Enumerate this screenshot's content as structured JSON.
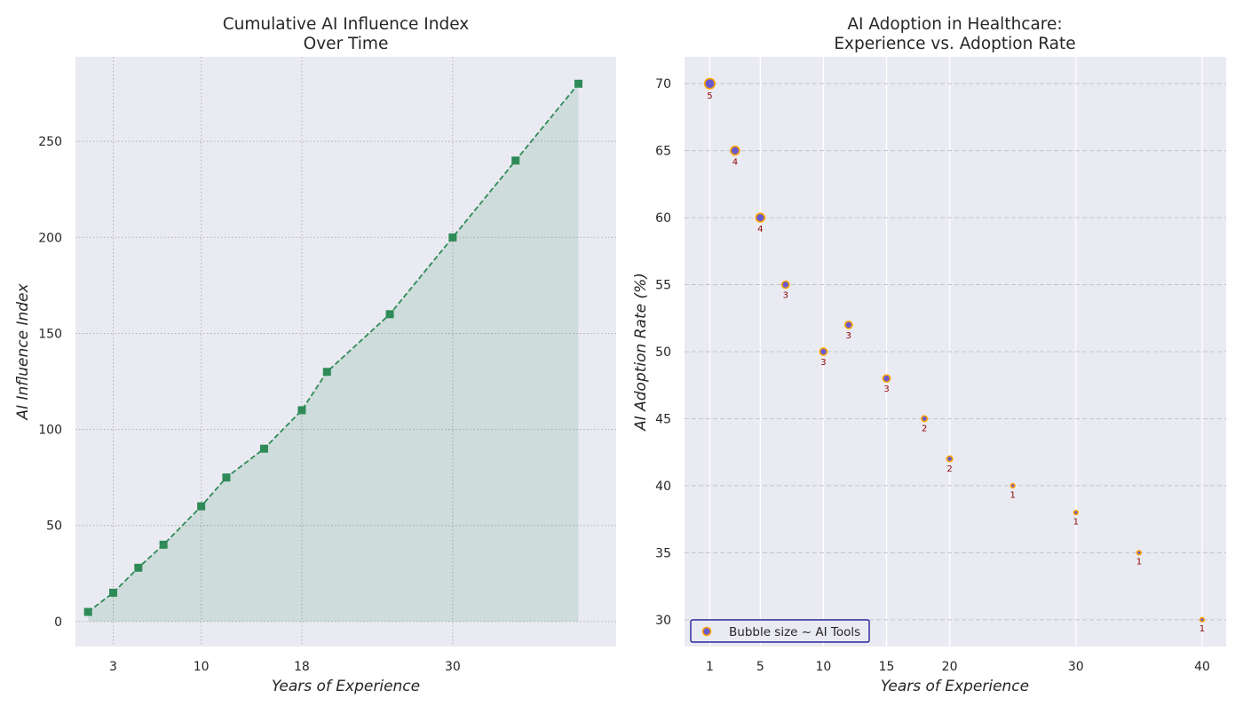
{
  "chart_data": [
    {
      "type": "area",
      "title_line1": "Cumulative AI Influence Index",
      "title_line2": "Over Time",
      "xlabel": "Years of Experience",
      "ylabel": "AI Influence Index",
      "xlim": [
        0,
        43
      ],
      "ylim": [
        -13,
        294
      ],
      "xticks": [
        3,
        10,
        18,
        30
      ],
      "yticks": [
        0,
        50,
        100,
        150,
        200,
        250
      ],
      "grid": "dotted",
      "x": [
        1,
        3,
        5,
        7,
        10,
        12,
        15,
        18,
        20,
        25,
        30,
        35,
        40
      ],
      "y": [
        5,
        15,
        28,
        40,
        60,
        75,
        90,
        110,
        130,
        160,
        200,
        240,
        280
      ],
      "colors": {
        "line": "#2e8b57",
        "fill": "#2e8b57",
        "plot_bg": "#eaeaf2"
      }
    },
    {
      "type": "scatter",
      "title_line1": "AI Adoption in Healthcare:",
      "title_line2": "Experience vs. Adoption Rate",
      "xlabel": "Years of Experience",
      "ylabel": "AI Adoption Rate (%)",
      "xlim": [
        -1,
        41.9
      ],
      "ylim": [
        28,
        72
      ],
      "xticks": [
        1,
        5,
        10,
        15,
        20,
        30,
        40
      ],
      "yticks": [
        30,
        35,
        40,
        45,
        50,
        55,
        60,
        65,
        70
      ],
      "legend": {
        "label": "Bubble size ~ AI Tools",
        "position": "lower-left"
      },
      "x": [
        1,
        3,
        5,
        7,
        10,
        12,
        15,
        18,
        20,
        25,
        30,
        35,
        40
      ],
      "y": [
        70,
        65,
        60,
        55,
        50,
        52,
        48,
        45,
        42,
        40,
        38,
        35,
        30
      ],
      "ai_tools": [
        5,
        4,
        4,
        3,
        3,
        3,
        3,
        2,
        2,
        1,
        1,
        1,
        1
      ],
      "colors": {
        "marker_fill": "#6a5acd",
        "marker_edge": "#ffa500",
        "label": "#8b0000",
        "legend_border": "#00008b",
        "plot_bg": "#eaeaf2"
      }
    }
  ]
}
